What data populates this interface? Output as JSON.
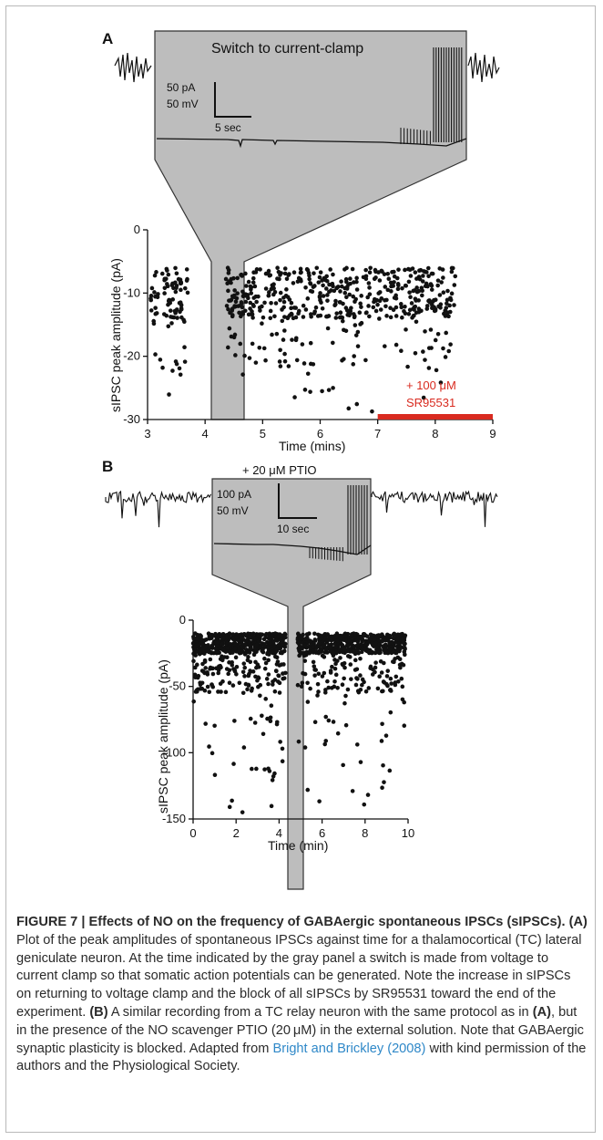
{
  "panel_a": {
    "label": "A",
    "inset_title": "Switch to current-clamp",
    "scale_current": "50 pA",
    "scale_voltage": "50 mV",
    "scale_time": "5 sec",
    "bar_label_line1": "+ 100 μM",
    "bar_label_line2": "SR95531",
    "bar_color": "#d92b20"
  },
  "panel_b": {
    "label": "B",
    "drug_label": "+ 20 μM PTIO",
    "scale_current": "100 pA",
    "scale_voltage": "50 mV",
    "scale_time": "10 sec"
  },
  "chart_data": [
    {
      "type": "scatter",
      "panel": "A",
      "title": "",
      "xlabel": "Time (mins)",
      "ylabel": "sIPSC peak amplitude (pA)",
      "xlim": [
        3,
        9
      ],
      "ylim": [
        -30,
        0
      ],
      "xticks": [
        3,
        4,
        5,
        6,
        7,
        8,
        9
      ],
      "yticks": [
        0,
        -10,
        -20,
        -30
      ],
      "gray_band_x": [
        3.7,
        4.3
      ],
      "drug_bar_x": [
        7,
        9
      ],
      "cluster_x": [
        [
          3.05,
          3.7
        ],
        [
          4.35,
          8.35
        ]
      ],
      "typical_y": [
        -6,
        -14
      ],
      "outlier_min_y": -29
    },
    {
      "type": "scatter",
      "panel": "B",
      "title": "",
      "xlabel": "Time (min)",
      "ylabel": "sIPSC peak amplitude (pA)",
      "xlim": [
        0,
        10
      ],
      "ylim": [
        -150,
        0
      ],
      "xticks": [
        0,
        2,
        4,
        6,
        8,
        10
      ],
      "yticks": [
        0,
        -50,
        -100,
        -150
      ],
      "gray_band_x": [
        4.3,
        4.8
      ],
      "cluster_x": [
        [
          0,
          4.3
        ],
        [
          4.85,
          9.9
        ]
      ],
      "typical_y": [
        -10,
        -25
      ],
      "outlier_min_y": -145
    }
  ],
  "caption": {
    "title": "FIGURE 7 | Effects of NO on the frequency of GABAergic spontaneous IPSCs (sIPSCs).",
    "ref_a": "(A)",
    "text_a": " Plot of the peak amplitudes of spontaneous IPSCs against time for a thalamocortical (TC) lateral geniculate neuron. At the time indicated by the gray panel a switch is made from voltage to current clamp so that somatic action potentials can be generated. Note the increase in sIPSCs on returning to voltage clamp and the block of all sIPSCs by SR95531 toward the end of the experiment. ",
    "ref_b": "(B)",
    "text_b1": " A similar recording from a TC relay neuron with the same protocol as in ",
    "ref_a2": "(A)",
    "text_b2": ", but in the presence of the NO scavenger PTIO (20 μM) in the external solution. Note that GABAergic synaptic plasticity is blocked. Adapted from ",
    "cite": "Bright and Brickley (2008)",
    "text_end": " with kind permission of the authors and the Physiological Society."
  }
}
